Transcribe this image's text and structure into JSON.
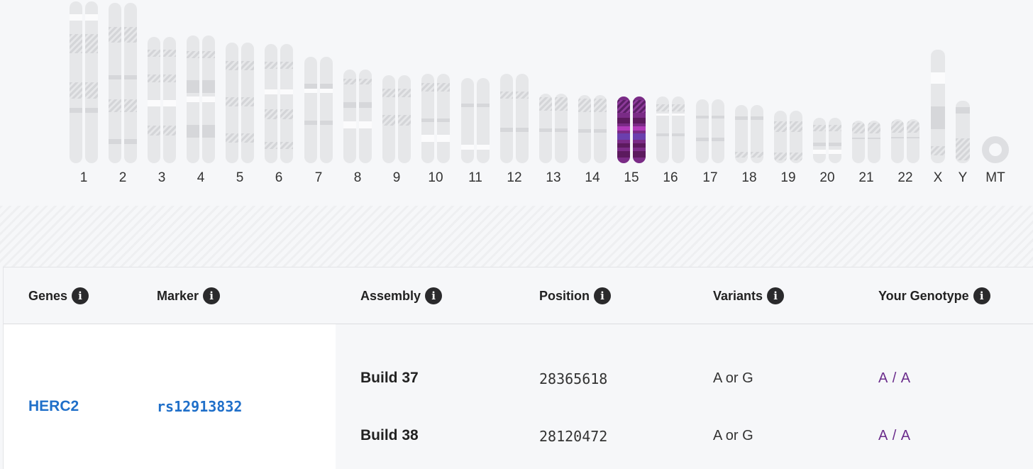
{
  "karyotype": {
    "chromosomes": [
      {
        "label": "1",
        "selected": false
      },
      {
        "label": "2",
        "selected": false
      },
      {
        "label": "3",
        "selected": false
      },
      {
        "label": "4",
        "selected": false
      },
      {
        "label": "5",
        "selected": false
      },
      {
        "label": "6",
        "selected": false
      },
      {
        "label": "7",
        "selected": false
      },
      {
        "label": "8",
        "selected": false
      },
      {
        "label": "9",
        "selected": false
      },
      {
        "label": "10",
        "selected": false
      },
      {
        "label": "11",
        "selected": false
      },
      {
        "label": "12",
        "selected": false
      },
      {
        "label": "13",
        "selected": false
      },
      {
        "label": "14",
        "selected": false
      },
      {
        "label": "15",
        "selected": true
      },
      {
        "label": "16",
        "selected": false
      },
      {
        "label": "17",
        "selected": false
      },
      {
        "label": "18",
        "selected": false
      },
      {
        "label": "19",
        "selected": false
      },
      {
        "label": "20",
        "selected": false
      },
      {
        "label": "21",
        "selected": false
      },
      {
        "label": "22",
        "selected": false
      },
      {
        "label": "X",
        "selected": false
      },
      {
        "label": "Y",
        "selected": false
      },
      {
        "label": "MT",
        "selected": false
      }
    ],
    "highlight_color": "#7a2b86"
  },
  "table": {
    "headers": {
      "genes": "Genes",
      "marker": "Marker",
      "assembly": "Assembly",
      "position": "Position",
      "variants": "Variants",
      "genotype": "Your Genotype"
    },
    "gene": "HERC2",
    "marker": "rs12913832",
    "rows": [
      {
        "assembly": "Build 37",
        "position": "28365618",
        "variants": "A or G",
        "genotype": "A / A"
      },
      {
        "assembly": "Build 38",
        "position": "28120472",
        "variants": "A or G",
        "genotype": "A / A"
      }
    ],
    "colors": {
      "link": "#1f6fc9",
      "genotype": "#6b2d8c"
    }
  }
}
